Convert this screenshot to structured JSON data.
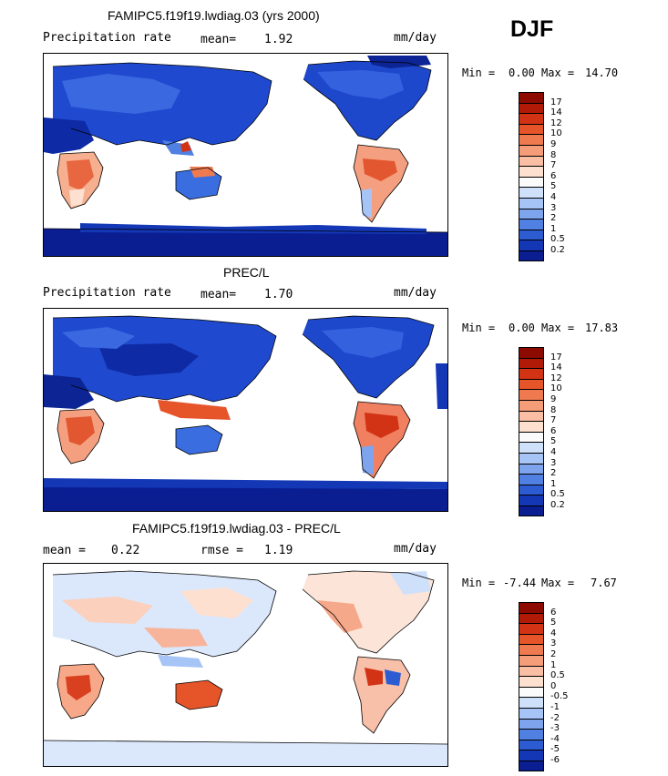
{
  "season": "DJF",
  "panels": [
    {
      "title": "FAMIPC5.f19f19.lwdiag.03 (yrs 2000)",
      "left_label": "Precipitation rate",
      "mid_label": "mean=",
      "mid_value": "1.92",
      "units": "mm/day",
      "min_label": "Min =",
      "min_value": "0.00",
      "max_label": "Max =",
      "max_value": "14.70",
      "scale": "abs"
    },
    {
      "title": "PREC/L",
      "left_label": "Precipitation rate",
      "mid_label": "mean=",
      "mid_value": "1.70",
      "units": "mm/day",
      "min_label": "Min =",
      "min_value": "0.00",
      "max_label": "Max =",
      "max_value": "17.83",
      "scale": "abs"
    },
    {
      "title": "FAMIPC5.f19f19.lwdiag.03 - PREC/L",
      "left_label": "mean =",
      "left_value": "0.22",
      "mid_label": "rmse =",
      "mid_value": "1.19",
      "units": "mm/day",
      "min_label": "Min =",
      "min_value": "-7.44",
      "max_label": "Max =",
      "max_value": "7.67",
      "scale": "diff"
    }
  ],
  "colorbars": {
    "abs": {
      "labels": [
        "17",
        "14",
        "12",
        "10",
        "9",
        "8",
        "7",
        "6",
        "5",
        "4",
        "3",
        "2",
        "1",
        "0.5",
        "0.2"
      ],
      "colors": [
        "#8c0a00",
        "#b01a06",
        "#d23314",
        "#e6542a",
        "#f07a50",
        "#f59c78",
        "#f9bea4",
        "#fde0d0",
        "#fbfbfb",
        "#cfe0fb",
        "#a6c4f6",
        "#7ea4ee",
        "#5080e2",
        "#2c5bd2",
        "#1437b6",
        "#0a1e92"
      ]
    },
    "diff": {
      "labels": [
        "6",
        "5",
        "4",
        "3",
        "2",
        "1",
        "0.5",
        "0",
        "-0.5",
        "-1",
        "-2",
        "-3",
        "-4",
        "-5",
        "-6"
      ],
      "colors": [
        "#8c0a00",
        "#b01a06",
        "#d23314",
        "#e6542a",
        "#f07a50",
        "#f59c78",
        "#f9bea4",
        "#fde0d0",
        "#fbfbfb",
        "#cfe0fb",
        "#a6c4f6",
        "#7ea4ee",
        "#5080e2",
        "#2c5bd2",
        "#1437b6",
        "#0a1e92"
      ]
    }
  }
}
